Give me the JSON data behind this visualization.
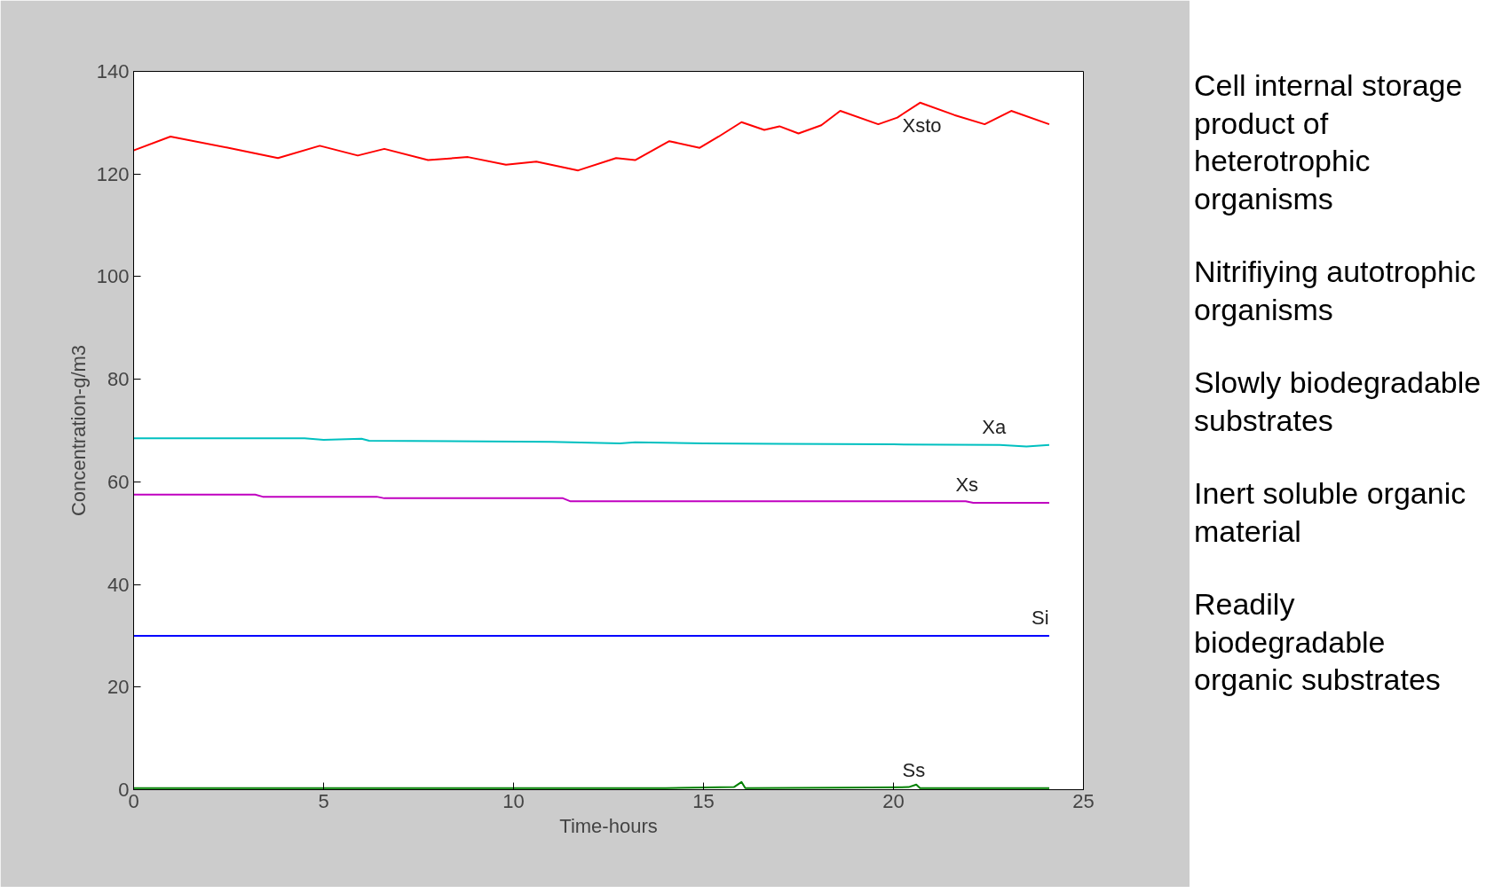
{
  "chart_data": {
    "type": "line",
    "xlabel": "Time-hours",
    "ylabel": "Concentration-g/m3",
    "xlim": [
      0,
      25
    ],
    "ylim": [
      0,
      140
    ],
    "xticks": [
      0,
      5,
      10,
      15,
      20,
      25
    ],
    "yticks": [
      0,
      20,
      40,
      60,
      80,
      100,
      120,
      140
    ],
    "grid": false,
    "legend": false,
    "marker": "none",
    "line_style": "solid",
    "series": [
      {
        "name": "Xsto",
        "color": "#ff0000",
        "x": [
          0,
          0.97,
          2.5,
          3.8,
          4.9,
          5.9,
          6.6,
          7.75,
          8.8,
          9.8,
          10.6,
          11.7,
          12.7,
          13.2,
          14.1,
          14.9,
          15.4,
          16.0,
          16.6,
          17.0,
          17.5,
          18.1,
          18.6,
          19.6,
          20.1,
          20.7,
          21.6,
          22.4,
          23.1,
          24.1
        ],
        "values": [
          124.6,
          127.3,
          125.1,
          123.1,
          125.5,
          123.6,
          124.9,
          122.7,
          123.3,
          121.8,
          122.4,
          120.7,
          123.1,
          122.7,
          126.4,
          125.1,
          127.3,
          130.1,
          128.6,
          129.3,
          127.9,
          129.5,
          132.3,
          129.7,
          131.0,
          133.9,
          131.5,
          129.7,
          132.3,
          129.7
        ]
      },
      {
        "name": "Xa",
        "color": "#00c0c0",
        "x": [
          0,
          4.5,
          5,
          6,
          6.2,
          11,
          12.8,
          13.2,
          15,
          17,
          20,
          22.8,
          23.5,
          24.1
        ],
        "values": [
          68.5,
          68.5,
          68.2,
          68.4,
          68.0,
          67.8,
          67.5,
          67.7,
          67.5,
          67.4,
          67.3,
          67.2,
          66.9,
          67.2
        ]
      },
      {
        "name": "Xs",
        "color": "#c000c0",
        "x": [
          0,
          3.2,
          3.4,
          6.4,
          6.6,
          11.3,
          11.5,
          21.9,
          22.1,
          24.1
        ],
        "values": [
          57.5,
          57.5,
          57.1,
          57.1,
          56.8,
          56.8,
          56.2,
          56.2,
          55.9,
          55.9
        ]
      },
      {
        "name": "Si",
        "color": "#0000ff",
        "x": [
          0,
          24.1
        ],
        "values": [
          30,
          30
        ]
      },
      {
        "name": "Ss",
        "color": "#008000",
        "x": [
          0,
          14,
          15.8,
          16.0,
          16.1,
          18.5,
          20.4,
          20.6,
          20.7,
          24.1
        ],
        "values": [
          0.3,
          0.3,
          0.5,
          1.5,
          0.3,
          0.4,
          0.5,
          1.0,
          0.3,
          0.3
        ]
      }
    ],
    "annotations": [
      "Cell internal storage product of heterotrophic organisms",
      "Nitrifiying autotrophic organisms",
      "Slowly biodegradable substrates",
      "Inert soluble organic material",
      "Readily biodegradable organic substrates"
    ]
  }
}
